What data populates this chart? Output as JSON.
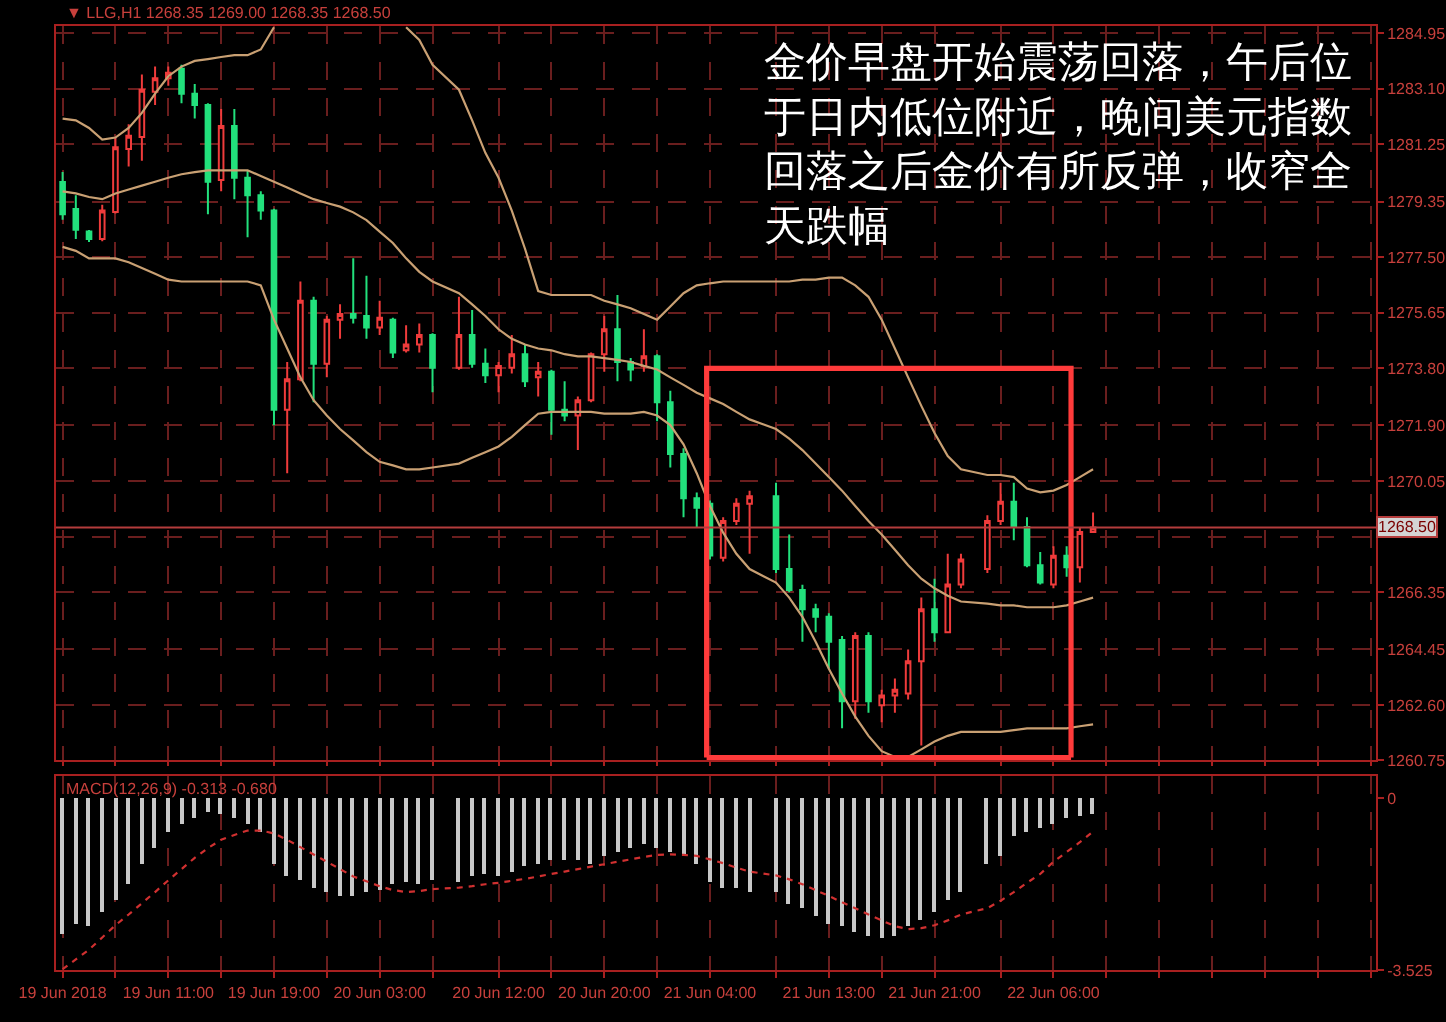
{
  "chart_data": [
    {
      "type": "candlestick",
      "title": "▼ LLG,H1 1268.35 1269.00 1268.35 1268.50",
      "x": [
        "2018-06-19T03:00",
        "2018-06-19T04:00",
        "2018-06-19T05:00",
        "2018-06-19T06:00",
        "2018-06-19T07:00",
        "2018-06-19T08:00",
        "2018-06-19T09:00",
        "2018-06-19T10:00",
        "2018-06-19T11:00",
        "2018-06-19T12:00",
        "2018-06-19T13:00",
        "2018-06-19T14:00",
        "2018-06-19T15:00",
        "2018-06-19T16:00",
        "2018-06-19T17:00",
        "2018-06-19T18:00",
        "2018-06-19T19:00",
        "2018-06-19T20:00",
        "2018-06-19T21:00",
        "2018-06-19T22:00",
        "2018-06-19T23:00",
        "2018-06-20T00:00",
        "2018-06-20T01:00",
        "2018-06-20T02:00",
        "2018-06-20T03:00",
        "2018-06-20T04:00",
        "2018-06-20T05:00",
        "2018-06-20T06:00",
        "2018-06-20T07:00",
        "2018-06-20T09:00",
        "2018-06-20T10:00",
        "2018-06-20T11:00",
        "2018-06-20T12:00",
        "2018-06-20T13:00",
        "2018-06-20T14:00",
        "2018-06-20T15:00",
        "2018-06-20T16:00",
        "2018-06-20T17:00",
        "2018-06-20T18:00",
        "2018-06-20T19:00",
        "2018-06-20T20:00",
        "2018-06-20T21:00",
        "2018-06-20T22:00",
        "2018-06-20T23:00",
        "2018-06-21T00:00",
        "2018-06-21T01:00",
        "2018-06-21T02:00",
        "2018-06-21T03:00",
        "2018-06-21T04:00",
        "2018-06-21T05:00",
        "2018-06-21T06:00",
        "2018-06-21T07:00",
        "2018-06-21T09:00",
        "2018-06-21T10:00",
        "2018-06-21T11:00",
        "2018-06-21T12:00",
        "2018-06-21T13:00",
        "2018-06-21T14:00",
        "2018-06-21T15:00",
        "2018-06-21T16:00",
        "2018-06-21T17:00",
        "2018-06-21T18:00",
        "2018-06-21T19:00",
        "2018-06-21T20:00",
        "2018-06-21T21:00",
        "2018-06-21T22:00",
        "2018-06-21T23:00",
        "2018-06-22T01:00",
        "2018-06-22T02:00",
        "2018-06-22T03:00",
        "2018-06-22T04:00",
        "2018-06-22T05:00",
        "2018-06-22T06:00",
        "2018-06-22T07:00",
        "2018-06-22T08:00",
        "2018-06-22T09:00"
      ],
      "ohlc": [
        [
          1280.0,
          1280.33,
          1278.74,
          1278.93
        ],
        [
          1279.1,
          1279.56,
          1278.1,
          1278.41
        ],
        [
          1278.35,
          1278.4,
          1278.0,
          1278.1
        ],
        [
          1278.1,
          1279.24,
          1278.03,
          1279.05
        ],
        [
          1279.0,
          1281.48,
          1278.95,
          1281.16
        ],
        [
          1281.1,
          1281.92,
          1280.52,
          1281.54
        ],
        [
          1281.5,
          1283.58,
          1280.71,
          1283.07
        ],
        [
          1283.0,
          1283.84,
          1282.56,
          1283.45
        ],
        [
          1283.45,
          1283.84,
          1283.2,
          1283.64
        ],
        [
          1283.77,
          1283.9,
          1282.62,
          1282.94
        ],
        [
          1282.94,
          1283.26,
          1282.11,
          1282.56
        ],
        [
          1282.56,
          1282.62,
          1278.93,
          1280.01
        ],
        [
          1280.07,
          1282.43,
          1279.69,
          1281.86
        ],
        [
          1281.86,
          1282.43,
          1279.43,
          1280.14
        ],
        [
          1280.14,
          1280.39,
          1278.16,
          1279.56
        ],
        [
          1279.56,
          1279.69,
          1278.74,
          1279.05
        ],
        [
          1279.05,
          1279.11,
          1271.91,
          1272.42
        ],
        [
          1272.42,
          1274.01,
          1270.31,
          1273.44
        ],
        [
          1273.44,
          1276.69,
          1273.37,
          1276.05
        ],
        [
          1276.05,
          1276.18,
          1272.67,
          1273.95
        ],
        [
          1273.95,
          1275.54,
          1273.5,
          1275.42
        ],
        [
          1275.42,
          1275.93,
          1274.78,
          1275.61
        ],
        [
          1275.61,
          1277.46,
          1275.29,
          1275.48
        ],
        [
          1275.54,
          1276.88,
          1274.78,
          1275.16
        ],
        [
          1275.16,
          1276.05,
          1274.91,
          1275.48
        ],
        [
          1275.42,
          1275.48,
          1274.14,
          1274.33
        ],
        [
          1274.4,
          1275.23,
          1274.33,
          1274.59
        ],
        [
          1274.59,
          1275.29,
          1274.33,
          1274.91
        ],
        [
          1274.91,
          1274.97,
          1273.0,
          1273.82
        ],
        [
          1273.82,
          1276.18,
          1273.75,
          1274.91
        ],
        [
          1274.91,
          1275.74,
          1273.82,
          1273.95
        ],
        [
          1273.95,
          1274.46,
          1273.31,
          1273.57
        ],
        [
          1273.57,
          1274.01,
          1273.0,
          1273.88
        ],
        [
          1273.82,
          1274.91,
          1273.63,
          1274.27
        ],
        [
          1274.27,
          1274.59,
          1273.18,
          1273.37
        ],
        [
          1273.5,
          1274.01,
          1272.86,
          1273.69
        ],
        [
          1273.69,
          1273.75,
          1271.59,
          1272.42
        ],
        [
          1272.42,
          1273.37,
          1272.04,
          1272.23
        ],
        [
          1272.23,
          1272.86,
          1271.08,
          1272.74
        ],
        [
          1272.74,
          1274.33,
          1272.67,
          1274.27
        ],
        [
          1274.27,
          1275.54,
          1273.69,
          1275.1
        ],
        [
          1275.1,
          1276.24,
          1273.37,
          1274.01
        ],
        [
          1274.01,
          1274.14,
          1273.37,
          1273.76
        ],
        [
          1273.88,
          1275.1,
          1273.69,
          1274.2
        ],
        [
          1274.2,
          1274.27,
          1272.04,
          1272.67
        ],
        [
          1272.67,
          1273.05,
          1270.5,
          1270.95
        ],
        [
          1270.95,
          1271.14,
          1268.84,
          1269.48
        ],
        [
          1269.48,
          1269.67,
          1268.52,
          1269.16
        ],
        [
          1269.29,
          1269.4,
          1267.44,
          1267.57
        ],
        [
          1267.5,
          1268.84,
          1267.37,
          1268.72
        ],
        [
          1268.72,
          1269.48,
          1268.59,
          1269.29
        ],
        [
          1269.29,
          1269.73,
          1267.63,
          1269.54
        ],
        [
          1269.54,
          1269.99,
          1266.99,
          1267.12
        ],
        [
          1267.12,
          1268.27,
          1266.35,
          1266.42
        ],
        [
          1266.42,
          1266.6,
          1264.7,
          1265.78
        ],
        [
          1265.78,
          1265.97,
          1265.02,
          1265.53
        ],
        [
          1265.53,
          1265.65,
          1263.8,
          1264.7
        ],
        [
          1264.76,
          1264.89,
          1261.82,
          1262.72
        ],
        [
          1262.72,
          1265.02,
          1262.14,
          1264.89
        ],
        [
          1264.89,
          1265.02,
          1262.34,
          1262.72
        ],
        [
          1262.59,
          1263.1,
          1262.02,
          1262.91
        ],
        [
          1262.91,
          1263.48,
          1262.34,
          1263.1
        ],
        [
          1262.98,
          1264.44,
          1262.78,
          1264.05
        ],
        [
          1264.05,
          1266.17,
          1261.25,
          1265.78
        ],
        [
          1265.78,
          1266.8,
          1264.7,
          1265.02
        ],
        [
          1265.02,
          1267.63,
          1264.98,
          1266.61
        ],
        [
          1266.61,
          1267.63,
          1266.48,
          1267.44
        ],
        [
          1267.12,
          1268.91,
          1266.99,
          1268.72
        ],
        [
          1268.72,
          1269.99,
          1268.59,
          1269.36
        ],
        [
          1269.36,
          1269.99,
          1268.08,
          1268.52
        ],
        [
          1268.52,
          1268.84,
          1267.18,
          1267.25
        ],
        [
          1267.25,
          1267.69,
          1266.61,
          1266.67
        ],
        [
          1266.61,
          1267.88,
          1266.48,
          1267.56
        ],
        [
          1267.56,
          1267.88,
          1266.86,
          1267.18
        ],
        [
          1267.18,
          1268.52,
          1266.67,
          1268.35
        ],
        [
          1268.35,
          1269.0,
          1268.35,
          1268.5
        ]
      ],
      "colors": [
        "#22e07c",
        "#22e07c",
        "#22e07c",
        "#ef3b3b",
        "#ef3b3b",
        "#ef3b3b",
        "#ef3b3b",
        "#ef3b3b",
        "#ef3b3b",
        "#22e07c",
        "#22e07c",
        "#22e07c",
        "#ef3b3b",
        "#22e07c",
        "#22e07c",
        "#22e07c",
        "#22e07c",
        "#ef3b3b",
        "#ef3b3b",
        "#22e07c",
        "#ef3b3b",
        "#ef3b3b",
        "#22e07c",
        "#22e07c",
        "#ef3b3b",
        "#22e07c",
        "#ef3b3b",
        "#ef3b3b",
        "#22e07c",
        "#ef3b3b",
        "#22e07c",
        "#22e07c",
        "#ef3b3b",
        "#ef3b3b",
        "#22e07c",
        "#ef3b3b",
        "#22e07c",
        "#22e07c",
        "#ef3b3b",
        "#ef3b3b",
        "#ef3b3b",
        "#22e07c",
        "#22e07c",
        "#ef3b3b",
        "#22e07c",
        "#22e07c",
        "#22e07c",
        "#22e07c",
        "#22e07c",
        "#ef3b3b",
        "#ef3b3b",
        "#ef3b3b",
        "#22e07c",
        "#22e07c",
        "#22e07c",
        "#22e07c",
        "#22e07c",
        "#22e07c",
        "#ef3b3b",
        "#22e07c",
        "#ef3b3b",
        "#ef3b3b",
        "#ef3b3b",
        "#ef3b3b",
        "#22e07c",
        "#ef3b3b",
        "#ef3b3b",
        "#ef3b3b",
        "#ef3b3b",
        "#22e07c",
        "#22e07c",
        "#22e07c",
        "#ef3b3b",
        "#22e07c",
        "#ef3b3b",
        "#ef3b3b"
      ],
      "series": [
        {
          "type": "line",
          "color": "#c9a073",
          "values": [
            1282.11,
            1282.05,
            1281.8,
            1281.41,
            1281.48,
            1281.8,
            1282.3,
            1282.94,
            1283.52,
            1283.84,
            1284.03,
            1284.09,
            1284.16,
            1284.22,
            1284.22,
            1284.41,
            1285.15,
            null,
            null,
            null,
            null,
            null,
            null,
            null,
            null,
            null,
            1285.15,
            1284.73,
            1283.9,
            1283.07,
            1282.05,
            1280.97,
            1280.14,
            1279.05,
            1277.78,
            1276.37,
            1276.24,
            1276.24,
            1276.24,
            1276.24,
            1276.05,
            1275.93,
            1275.8,
            1275.61,
            1275.42,
            1275.86,
            1276.3,
            1276.56,
            1276.63,
            1276.69,
            1276.69,
            1276.69,
            1276.69,
            1276.69,
            1276.75,
            1276.75,
            1276.82,
            1276.82,
            1276.56,
            1276.18,
            1275.42,
            1274.46,
            1273.5,
            1272.55,
            1271.65,
            1270.88,
            1270.44,
            1270.25,
            1270.25,
            1270.18,
            1269.8,
            1269.67,
            1269.73,
            1269.92,
            1270.18,
            1270.44
          ]
        },
        {
          "type": "line",
          "color": "#c9a073",
          "values": [
            1279.69,
            1279.62,
            1279.5,
            1279.43,
            1279.62,
            1279.75,
            1279.88,
            1280.01,
            1280.14,
            1280.26,
            1280.33,
            1280.39,
            1280.39,
            1280.39,
            1280.39,
            1280.2,
            1280.01,
            1279.82,
            1279.62,
            1279.43,
            1279.3,
            1279.18,
            1278.99,
            1278.73,
            1278.35,
            1277.97,
            1277.46,
            1277.01,
            1276.69,
            1276.3,
            1275.93,
            1275.54,
            1275.1,
            1274.78,
            1274.59,
            1274.46,
            1274.4,
            1274.27,
            1274.2,
            1274.2,
            1274.14,
            1274.08,
            1274.01,
            1273.88,
            1273.76,
            1273.5,
            1273.25,
            1272.99,
            1272.8,
            1272.61,
            1272.35,
            1272.1,
            1271.78,
            1271.46,
            1271.08,
            1270.63,
            1270.18,
            1269.73,
            1269.22,
            1268.72,
            1268.27,
            1267.76,
            1267.25,
            1266.8,
            1266.48,
            1266.23,
            1266.04,
            1265.97,
            1265.91,
            1265.91,
            1265.85,
            1265.85,
            1265.85,
            1265.91,
            1266.04,
            1266.17
          ]
        },
        {
          "type": "line",
          "color": "#c9a073",
          "values": [
            1277.84,
            1277.71,
            1277.46,
            1277.46,
            1277.46,
            1277.33,
            1277.14,
            1276.95,
            1276.75,
            1276.69,
            1276.69,
            1276.69,
            1276.69,
            1276.69,
            1276.69,
            1276.56,
            1275.42,
            1274.46,
            1273.5,
            1272.74,
            1272.23,
            1271.78,
            1271.4,
            1271.01,
            1270.69,
            1270.57,
            1270.44,
            1270.44,
            1270.5,
            1270.63,
            1270.82,
            1271.01,
            1271.2,
            1271.52,
            1271.91,
            1272.29,
            1272.35,
            1272.35,
            1272.35,
            1272.35,
            1272.29,
            1272.29,
            1272.29,
            1272.35,
            1272.23,
            1271.91,
            1271.27,
            1270.31,
            1269.22,
            1268.33,
            1267.63,
            1267.12,
            1266.67,
            1266.17,
            1265.53,
            1264.7,
            1263.8,
            1262.98,
            1262.21,
            1261.57,
            1261.06,
            1260.87,
            1260.87,
            1261.12,
            1261.38,
            1261.57,
            1261.7,
            1261.7,
            1261.7,
            1261.76,
            1261.82,
            1261.82,
            1261.82,
            1261.82,
            1261.89,
            1261.95
          ]
        },
        {
          "type": "line",
          "color": "#ff3b3b",
          "x": [
            "2018-06-21T03:45",
            "2018-06-21T03:45",
            "2018-06-22T07:20",
            "2018-06-22T07:20"
          ],
          "values": [
            1260.85,
            1273.8,
            1273.8,
            1260.85
          ]
        },
        {
          "type": "line",
          "color": "#ff3b3b",
          "x": [
            "2018-06-21T03:45",
            "2018-06-22T07:20"
          ],
          "values": [
            1260.85,
            1260.85
          ]
        }
      ],
      "ref_lines": [
        {
          "axis": "y",
          "value": 1268.5,
          "label": "1268.50",
          "color": "#b43c3c"
        }
      ],
      "annotations": [
        "金价早盘开始震荡回落，午后位于日内低位附近，晚间美元指数回落之后金价有所反弹，收窄全天跌幅"
      ],
      "xlim": [
        "2018-06-19T02:30",
        "2018-06-23T06:25"
      ],
      "xticks": [
        "2018-06-19T03:00",
        "2018-06-19T07:00",
        "2018-06-19T11:00",
        "2018-06-19T15:00",
        "2018-06-19T19:00",
        "2018-06-19T23:00",
        "2018-06-20T03:00",
        "2018-06-20T07:00",
        "2018-06-20T12:00",
        "2018-06-20T16:00",
        "2018-06-20T20:00",
        "2018-06-21T00:00",
        "2018-06-21T04:00",
        "2018-06-21T09:00",
        "2018-06-21T13:00",
        "2018-06-21T17:00",
        "2018-06-21T21:00",
        "2018-06-22T02:00",
        "2018-06-22T06:00",
        "2018-06-22T10:00",
        "2018-06-22T14:00",
        "2018-06-22T18:00",
        "2018-06-22T22:00",
        "2018-06-23T02:00",
        "2018-06-23T06:00"
      ],
      "ylim": [
        1260.75,
        1285.2
      ],
      "yticks": [
        1284.95,
        {
          "value": 1283.1,
          "label": "1283.10"
        },
        1281.25,
        1279.35,
        {
          "value": 1277.5,
          "label": "1277.50"
        },
        1275.65,
        {
          "value": 1273.8,
          "label": "1273.80"
        },
        {
          "value": 1271.9,
          "label": "1271.90"
        },
        1270.05,
        {
          "value": 1268.2,
          "label": null
        },
        1266.35,
        1264.45,
        {
          "value": 1262.6,
          "label": "1262.60"
        },
        1260.75
      ],
      "grid": true,
      "tick_labels": "y"
    },
    {
      "type": "bar",
      "title": "MACD(12,26,9) -0.313 -0.680",
      "x": [
        "2018-06-19T03:00",
        "2018-06-19T04:00",
        "2018-06-19T05:00",
        "2018-06-19T06:00",
        "2018-06-19T07:00",
        "2018-06-19T08:00",
        "2018-06-19T09:00",
        "2018-06-19T10:00",
        "2018-06-19T11:00",
        "2018-06-19T12:00",
        "2018-06-19T13:00",
        "2018-06-19T14:00",
        "2018-06-19T15:00",
        "2018-06-19T16:00",
        "2018-06-19T17:00",
        "2018-06-19T18:00",
        "2018-06-19T19:00",
        "2018-06-19T20:00",
        "2018-06-19T21:00",
        "2018-06-19T22:00",
        "2018-06-19T23:00",
        "2018-06-20T00:00",
        "2018-06-20T01:00",
        "2018-06-20T02:00",
        "2018-06-20T03:00",
        "2018-06-20T04:00",
        "2018-06-20T05:00",
        "2018-06-20T06:00",
        "2018-06-20T07:00",
        "2018-06-20T09:00",
        "2018-06-20T10:00",
        "2018-06-20T11:00",
        "2018-06-20T12:00",
        "2018-06-20T13:00",
        "2018-06-20T14:00",
        "2018-06-20T15:00",
        "2018-06-20T16:00",
        "2018-06-20T17:00",
        "2018-06-20T18:00",
        "2018-06-20T19:00",
        "2018-06-20T20:00",
        "2018-06-20T21:00",
        "2018-06-20T22:00",
        "2018-06-20T23:00",
        "2018-06-21T00:00",
        "2018-06-21T01:00",
        "2018-06-21T02:00",
        "2018-06-21T03:00",
        "2018-06-21T04:00",
        "2018-06-21T05:00",
        "2018-06-21T06:00",
        "2018-06-21T07:00",
        "2018-06-21T09:00",
        "2018-06-21T10:00",
        "2018-06-21T11:00",
        "2018-06-21T12:00",
        "2018-06-21T13:00",
        "2018-06-21T14:00",
        "2018-06-21T15:00",
        "2018-06-21T16:00",
        "2018-06-21T17:00",
        "2018-06-21T18:00",
        "2018-06-21T19:00",
        "2018-06-21T20:00",
        "2018-06-21T21:00",
        "2018-06-21T22:00",
        "2018-06-21T23:00",
        "2018-06-22T01:00",
        "2018-06-22T02:00",
        "2018-06-22T03:00",
        "2018-06-22T04:00",
        "2018-06-22T05:00",
        "2018-06-22T06:00",
        "2018-06-22T07:00",
        "2018-06-22T08:00",
        "2018-06-22T09:00"
      ],
      "series": [
        {
          "color": "#c8c8c8",
          "values": [
            -2.77,
            -2.57,
            -2.64,
            -2.33,
            -2.08,
            -1.76,
            -1.34,
            -1.02,
            -0.7,
            -0.53,
            -0.39,
            -0.28,
            -0.32,
            -0.42,
            -0.53,
            -0.7,
            -1.34,
            -1.59,
            -1.69,
            -1.83,
            -1.92,
            -2.01,
            -2.01,
            -1.92,
            -1.89,
            -1.76,
            -1.73,
            -1.76,
            -1.68,
            -1.73,
            -1.59,
            -1.55,
            -1.59,
            -1.52,
            -1.41,
            -1.34,
            -1.27,
            -1.27,
            -1.27,
            -1.34,
            -1.2,
            -1.11,
            -1.02,
            -0.95,
            -1.02,
            -1.11,
            -1.2,
            -1.34,
            -1.73,
            -1.83,
            -1.83,
            -1.92,
            -1.92,
            -2.17,
            -2.26,
            -2.4,
            -2.57,
            -2.64,
            -2.74,
            -2.82,
            -2.86,
            -2.82,
            -2.64,
            -2.49,
            -2.33,
            -2.08,
            -1.92,
            -1.34,
            -1.2,
            -0.78,
            -0.7,
            -0.62,
            -0.53,
            -0.42,
            -0.38,
            -0.313
          ]
        },
        {
          "type": "line",
          "color": "#d03030",
          "line_style": "dotted",
          "values": [
            -3.5,
            -3.3,
            -3.1,
            -2.85,
            -2.6,
            -2.38,
            -2.15,
            -1.92,
            -1.68,
            -1.45,
            -1.22,
            -1.02,
            -0.85,
            -0.75,
            -0.66,
            -0.66,
            -0.72,
            -0.85,
            -1.0,
            -1.15,
            -1.3,
            -1.45,
            -1.6,
            -1.7,
            -1.8,
            -1.88,
            -1.92,
            -1.9,
            -1.86,
            -1.83,
            -1.8,
            -1.76,
            -1.73,
            -1.69,
            -1.65,
            -1.6,
            -1.55,
            -1.5,
            -1.45,
            -1.4,
            -1.35,
            -1.3,
            -1.25,
            -1.2,
            -1.16,
            -1.15,
            -1.16,
            -1.18,
            -1.25,
            -1.33,
            -1.42,
            -1.5,
            -1.58,
            -1.66,
            -1.76,
            -1.88,
            -2.0,
            -2.13,
            -2.25,
            -2.38,
            -2.5,
            -2.62,
            -2.68,
            -2.66,
            -2.6,
            -2.5,
            -2.38,
            -2.25,
            -2.1,
            -1.92,
            -1.73,
            -1.55,
            -1.3,
            -1.1,
            -0.9,
            -0.68
          ]
        }
      ],
      "xlim": [
        "2018-06-19T02:30",
        "2018-06-23T06:25"
      ],
      "xticks": [
        {
          "value": "2018-06-19T03:00",
          "label": "19 Jun 2018"
        },
        {
          "value": "2018-06-19T07:00",
          "label": null
        },
        {
          "value": "2018-06-19T11:00",
          "label": "19 Jun 11:00"
        },
        {
          "value": "2018-06-19T15:00",
          "label": null
        },
        {
          "value": "2018-06-19T19:00",
          "label": "19 Jun 19:00"
        },
        {
          "value": "2018-06-19T23:00",
          "label": null
        },
        {
          "value": "2018-06-20T03:00",
          "label": "20 Jun 03:00"
        },
        {
          "value": "2018-06-20T07:00",
          "label": null
        },
        {
          "value": "2018-06-20T12:00",
          "label": "20 Jun 12:00"
        },
        {
          "value": "2018-06-20T16:00",
          "label": null
        },
        {
          "value": "2018-06-20T20:00",
          "label": "20 Jun 20:00"
        },
        {
          "value": "2018-06-21T00:00",
          "label": null
        },
        {
          "value": "2018-06-21T04:00",
          "label": "21 Jun 04:00"
        },
        {
          "value": "2018-06-21T09:00",
          "label": null
        },
        {
          "value": "2018-06-21T13:00",
          "label": "21 Jun 13:00"
        },
        {
          "value": "2018-06-21T17:00",
          "label": null
        },
        {
          "value": "2018-06-21T21:00",
          "label": "21 Jun 21:00"
        },
        {
          "value": "2018-06-22T02:00",
          "label": null
        },
        {
          "value": "2018-06-22T06:00",
          "label": "22 Jun 06:00"
        },
        {
          "value": "2018-06-22T10:00",
          "label": null
        },
        {
          "value": "2018-06-22T14:00",
          "label": null
        },
        {
          "value": "2018-06-22T18:00",
          "label": null
        },
        {
          "value": "2018-06-22T22:00",
          "label": null
        },
        {
          "value": "2018-06-23T02:00",
          "label": null
        },
        {
          "value": "2018-06-23T06:00",
          "label": null
        }
      ],
      "ylim": [
        -3.525,
        0.45
      ],
      "yticks": [
        0,
        -3.525
      ],
      "grid": "x"
    }
  ]
}
